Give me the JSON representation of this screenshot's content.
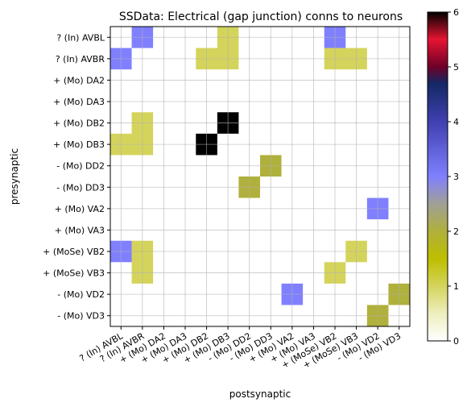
{
  "chart_data": {
    "type": "heatmap",
    "title": "SSData: Electrical (gap junction) conns to neurons",
    "xlabel": "postsynaptic",
    "ylabel": "presynaptic",
    "rows": [
      "? (In) AVBL",
      "? (In) AVBR",
      "+ (Mo) DA2",
      "+ (Mo) DA3",
      "+ (Mo) DB2",
      "+ (Mo) DB3",
      "- (Mo) DD2",
      "- (Mo) DD3",
      "+ (Mo) VA2",
      "+ (Mo) VA3",
      "+ (MoSe) VB2",
      "+ (MoSe) VB3",
      "- (Mo) VD2",
      "- (Mo) VD3"
    ],
    "columns": [
      "? (In) AVBL",
      "? (In) AVBR",
      "+ (Mo) DA2",
      "+ (Mo) DA3",
      "+ (Mo) DB2",
      "+ (Mo) DB3",
      "- (Mo) DD2",
      "- (Mo) DD3",
      "+ (Mo) VA2",
      "+ (Mo) VA3",
      "+ (MoSe) VB2",
      "+ (MoSe) VB3",
      "- (Mo) VD2",
      "- (Mo) VD3"
    ],
    "values": [
      [
        0,
        3,
        0,
        0,
        0,
        1,
        0,
        0,
        0,
        0,
        3,
        0,
        0,
        0
      ],
      [
        3,
        0,
        0,
        0,
        1,
        1,
        0,
        0,
        0,
        0,
        1,
        1,
        0,
        0
      ],
      [
        0,
        0,
        0,
        0,
        0,
        0,
        0,
        0,
        0,
        0,
        0,
        0,
        0,
        0
      ],
      [
        0,
        0,
        0,
        0,
        0,
        0,
        0,
        0,
        0,
        0,
        0,
        0,
        0,
        0
      ],
      [
        0,
        1,
        0,
        0,
        0,
        6,
        0,
        0,
        0,
        0,
        0,
        0,
        0,
        0
      ],
      [
        1,
        1,
        0,
        0,
        6,
        0,
        0,
        0,
        0,
        0,
        0,
        0,
        0,
        0
      ],
      [
        0,
        0,
        0,
        0,
        0,
        0,
        0,
        2,
        0,
        0,
        0,
        0,
        0,
        0
      ],
      [
        0,
        0,
        0,
        0,
        0,
        0,
        2,
        0,
        0,
        0,
        0,
        0,
        0,
        0
      ],
      [
        0,
        0,
        0,
        0,
        0,
        0,
        0,
        0,
        0,
        0,
        0,
        0,
        3,
        0
      ],
      [
        0,
        0,
        0,
        0,
        0,
        0,
        0,
        0,
        0,
        0,
        0,
        0,
        0,
        0
      ],
      [
        3,
        1,
        0,
        0,
        0,
        0,
        0,
        0,
        0,
        0,
        0,
        1,
        0,
        0
      ],
      [
        0,
        1,
        0,
        0,
        0,
        0,
        0,
        0,
        0,
        0,
        1,
        0,
        0,
        0
      ],
      [
        0,
        0,
        0,
        0,
        0,
        0,
        0,
        0,
        3,
        0,
        0,
        0,
        0,
        2
      ],
      [
        0,
        0,
        0,
        0,
        0,
        0,
        0,
        0,
        0,
        0,
        0,
        0,
        2,
        0
      ]
    ],
    "zlim": [
      0,
      6
    ],
    "colorbar_ticks": [
      0,
      1,
      2,
      3,
      4,
      5,
      6
    ],
    "colormap": "gist_stern_r",
    "grid": true,
    "legend": "colorbar right"
  }
}
